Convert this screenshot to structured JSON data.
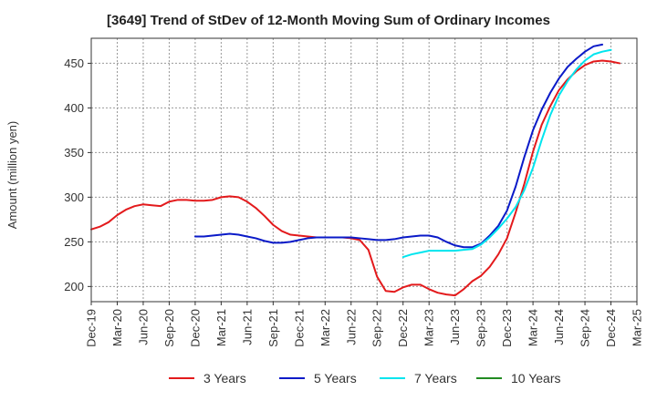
{
  "chart_data": {
    "type": "line",
    "title": "[3649]  Trend of StDev of 12-Month Moving Sum of Ordinary Incomes",
    "xlabel": "",
    "ylabel": "Amount (million yen)",
    "ylim": [
      183,
      478
    ],
    "yticks": [
      200,
      250,
      300,
      350,
      400,
      450
    ],
    "x_start": "Dec-19",
    "x_tick_labels": [
      "Dec-19",
      "Mar-20",
      "Jun-20",
      "Sep-20",
      "Dec-20",
      "Mar-21",
      "Jun-21",
      "Sep-21",
      "Dec-21",
      "Mar-22",
      "Jun-22",
      "Sep-22",
      "Dec-22",
      "Mar-23",
      "Jun-23",
      "Sep-23",
      "Dec-23",
      "Mar-24",
      "Jun-24",
      "Sep-24",
      "Dec-24",
      "Mar-25"
    ],
    "grid": true,
    "legend_position": "bottom",
    "series": [
      {
        "name": "3 Years",
        "color": "#e31a1c",
        "start_index": 0,
        "values": [
          264,
          267,
          272,
          280,
          286,
          290,
          292,
          291,
          290,
          295,
          297,
          297,
          296,
          296,
          297,
          300,
          301,
          300,
          295,
          288,
          279,
          269,
          262,
          258,
          257,
          256,
          255,
          255,
          255,
          255,
          254,
          252,
          241,
          211,
          195,
          194,
          199,
          202,
          202,
          197,
          193,
          191,
          190,
          197,
          206,
          212,
          222,
          236,
          254,
          283,
          315,
          351,
          381,
          402,
          420,
          432,
          441,
          448,
          452,
          453,
          452,
          450
        ]
      },
      {
        "name": "5 Years",
        "color": "#0a1ac8",
        "start_index": 12,
        "values": [
          256,
          256,
          257,
          258,
          259,
          258,
          256,
          254,
          251,
          249,
          249,
          250,
          252,
          254,
          255,
          255,
          255,
          255,
          255,
          254,
          253,
          252,
          252,
          253,
          255,
          256,
          257,
          257,
          255,
          250,
          246,
          244,
          244,
          248,
          257,
          268,
          285,
          312,
          345,
          375,
          398,
          417,
          433,
          446,
          455,
          463,
          469,
          471
        ]
      },
      {
        "name": "7 Years",
        "color": "#00e5ee",
        "start_index": 36,
        "values": [
          233,
          236,
          238,
          240,
          240,
          240,
          240,
          241,
          242,
          247,
          255,
          265,
          276,
          289,
          308,
          333,
          364,
          392,
          414,
          430,
          443,
          453,
          460,
          463,
          465
        ]
      },
      {
        "name": "10 Years",
        "color": "#228b22",
        "start_index": 0,
        "values": []
      }
    ]
  }
}
